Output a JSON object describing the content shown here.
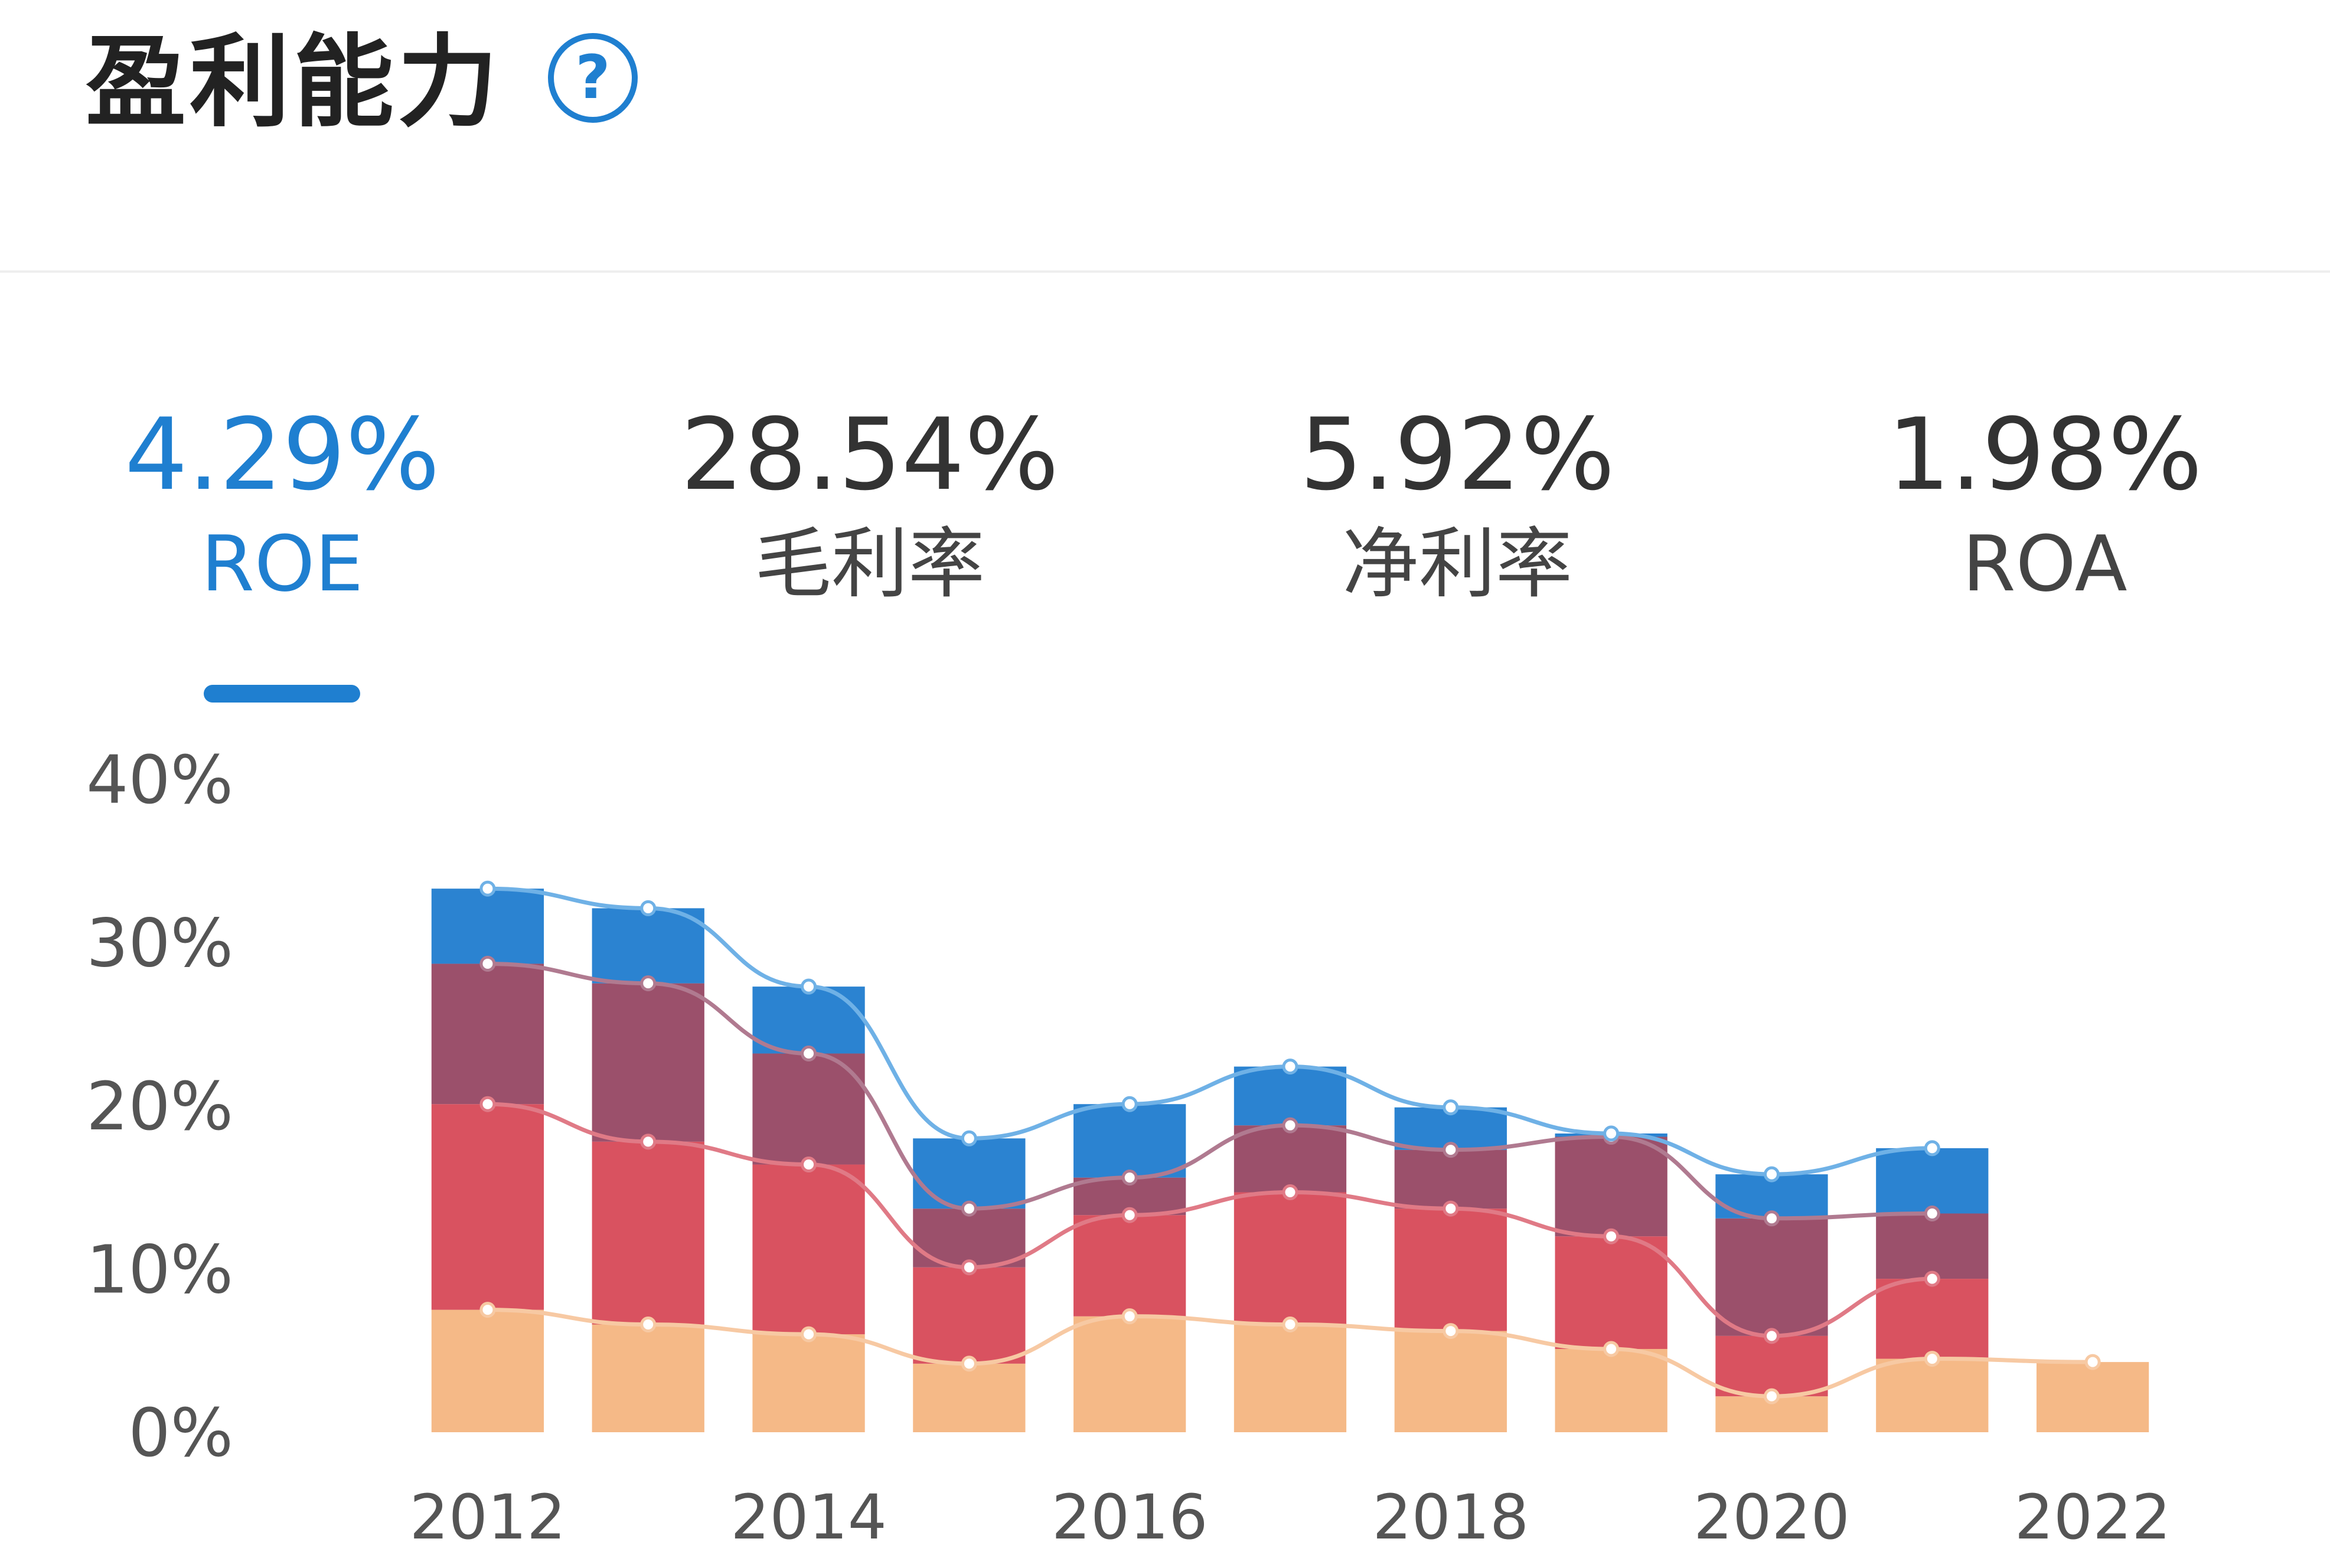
{
  "header": {
    "title": "盈利能力",
    "help_icon": "help-circle-icon"
  },
  "metrics": [
    {
      "value": "4.29%",
      "label": "ROE",
      "active": true
    },
    {
      "value": "28.54%",
      "label": "毛利率",
      "active": false
    },
    {
      "value": "5.92%",
      "label": "净利率",
      "active": false
    },
    {
      "value": "1.98%",
      "label": "ROA",
      "active": false
    }
  ],
  "colors": {
    "accent": "#1f7fd0",
    "text": "#333333"
  },
  "chart_data": {
    "type": "bar",
    "stacked": true,
    "with_trend_lines": true,
    "x": [
      2012,
      2013,
      2014,
      2015,
      2016,
      2017,
      2018,
      2019,
      2020,
      2021,
      2022
    ],
    "x_tick_labels": [
      "2012",
      "2014",
      "2016",
      "2018",
      "2020",
      "2022"
    ],
    "y_tick_labels": [
      "0%",
      "10%",
      "20%",
      "30%",
      "40%"
    ],
    "ylim": [
      0,
      40
    ],
    "grid": false,
    "series": [
      {
        "color": "#f5b987",
        "line_color": "#f7c9a3",
        "values": [
          7.5,
          6.6,
          6.0,
          4.2,
          7.1,
          6.6,
          6.2,
          5.1,
          2.2,
          4.5,
          4.3
        ]
      },
      {
        "color": "#d95260",
        "line_color": "#e07a86",
        "values": [
          12.6,
          11.2,
          10.4,
          5.9,
          6.2,
          8.1,
          7.5,
          6.9,
          3.7,
          4.9,
          0
        ]
      },
      {
        "color": "#9b506b",
        "line_color": "#b07a90",
        "values": [
          8.6,
          9.7,
          6.8,
          3.6,
          2.3,
          4.1,
          3.6,
          6.1,
          7.2,
          4.0,
          0
        ]
      },
      {
        "color": "#2b83d1",
        "line_color": "#6fb1e6",
        "values": [
          4.6,
          4.6,
          4.1,
          4.3,
          4.5,
          3.6,
          2.6,
          0.2,
          2.7,
          4.0,
          0
        ]
      }
    ]
  }
}
